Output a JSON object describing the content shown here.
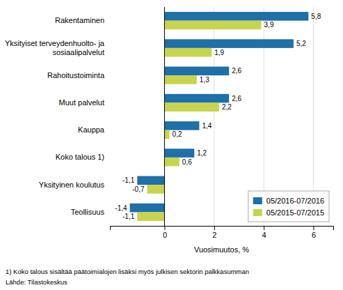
{
  "chart_data": {
    "type": "bar",
    "orientation": "horizontal",
    "categories": [
      "Teollisuus",
      "Yksityinen koulutus",
      "Koko talous 1)",
      "Kauppa",
      "Muut palvelut",
      "Rahoitustoiminta",
      "Yksityiset terveydenhuolto- ja\nsosiaalipalvelut",
      "Rakentaminen"
    ],
    "series": [
      {
        "name": "05/2016-07/2016",
        "color": "#1F6FA8",
        "values": [
          -1.4,
          -1.1,
          1.2,
          1.4,
          2.6,
          2.6,
          5.2,
          5.8
        ],
        "value_labels": [
          "-1,4",
          "-1,1",
          "1,2",
          "1,4",
          "2,6",
          "2,6",
          "5,2",
          "5,8"
        ]
      },
      {
        "name": "05/2015-07/2015",
        "color": "#C8D44E",
        "values": [
          -1.1,
          -0.7,
          0.6,
          0.2,
          2.2,
          1.3,
          1.9,
          3.9
        ],
        "value_labels": [
          "-1,1",
          "-0,7",
          "0,6",
          "0,2",
          "2,2",
          "1,3",
          "1,9",
          "3,9"
        ]
      }
    ],
    "xlabel": "Vuosimuutos, %",
    "xlim": [
      -2.2,
      6.8
    ],
    "xticks": [
      0,
      2,
      4,
      6
    ],
    "grid": true,
    "legend": "lower right",
    "data_labels": true,
    "footnotes": [
      "1) Koko talous sisältää päätoimialojen lisäksi myös julkisen sektorin palkkasumman",
      "Lähde: Tilastokeskus"
    ]
  }
}
